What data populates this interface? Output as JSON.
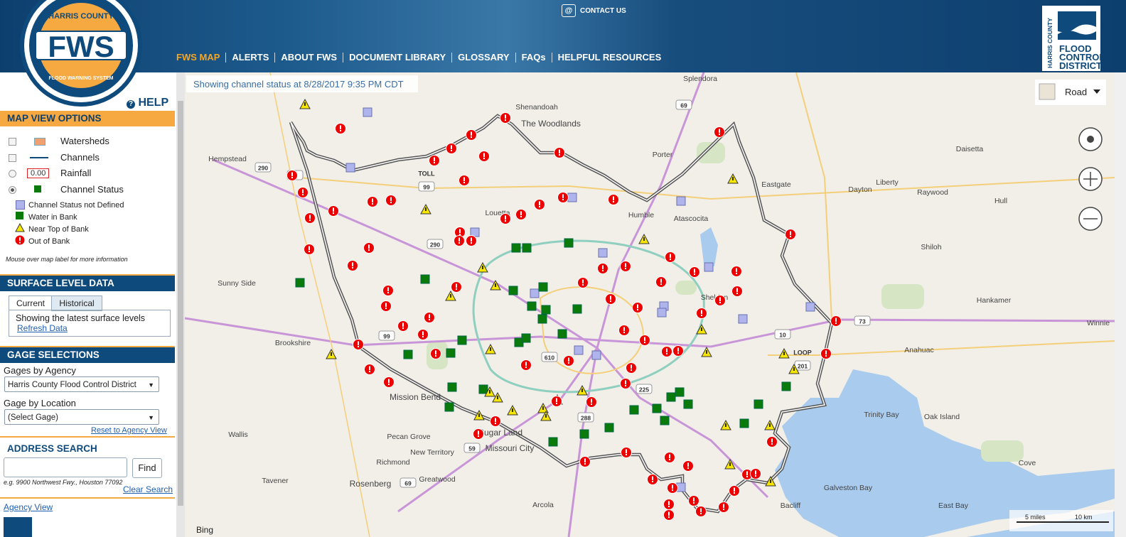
{
  "header": {
    "contact": "CONTACT US",
    "nav": [
      "FWS MAP",
      "ALERTS",
      "ABOUT FWS",
      "DOCUMENT LIBRARY",
      "GLOSSARY",
      "FAQs",
      "HELPFUL RESOURCES"
    ],
    "logo": {
      "county": "HARRIS COUNTY",
      "name": "FWS",
      "system": "FLOOD WARNING SYSTEM"
    },
    "district_logo": {
      "county": "HARRIS COUNTY",
      "line1": "FLOOD",
      "line2": "CONTROL",
      "line3": "DISTRICT"
    }
  },
  "sidebar": {
    "help": "HELP",
    "map_view": {
      "title": "MAP VIEW OPTIONS",
      "layers": [
        "Watersheds",
        "Channels",
        "Rainfall",
        "Channel Status"
      ],
      "rainfall_sample": "0.00",
      "legend": [
        "Channel Status not Defined",
        "Water in Bank",
        "Near Top of Bank",
        "Out of Bank"
      ],
      "note": "Mouse over map label for more information"
    },
    "surface": {
      "title": "SURFACE LEVEL DATA",
      "tabs": [
        "Current",
        "Historical"
      ],
      "text": "Showing the latest surface levels",
      "refresh": "Refresh Data"
    },
    "gage": {
      "title": "GAGE SELECTIONS",
      "agency_label": "Gages by Agency",
      "agency_value": "Harris County Flood Control District",
      "location_label": "Gage by Location",
      "location_value": "(Select Gage)",
      "reset": "Reset to Agency View"
    },
    "address": {
      "title": "ADDRESS SEARCH",
      "button": "Find",
      "example": "e.g. 9900 Northwest Fwy., Houston 77092",
      "clear": "Clear Search"
    },
    "agency_view": "Agency View"
  },
  "map": {
    "status": "Showing channel status at 8/28/2017 9:35 PM CDT",
    "style": "Road",
    "places": [
      "Splendora",
      "Shenandoah",
      "The Woodlands",
      "Porter",
      "Daisetta",
      "Hempstead",
      "Eastgate",
      "Dayton",
      "Liberty",
      "Raywood",
      "Humble",
      "Atascocita",
      "Hull",
      "Louetta",
      "Sunny Side",
      "Sheldon",
      "Shiloh",
      "Hankamer",
      "Brookshire",
      "Anahuac",
      "Winnie",
      "Mission Bend",
      "Wallis",
      "Sugar Land",
      "Missouri City",
      "Trinity Bay",
      "Oak Island",
      "Pecan Grove",
      "New Territory",
      "Richmond",
      "Greatwood",
      "Rosenberg",
      "Tavener",
      "Galveston Bay",
      "Arcola",
      "Bacliff",
      "East Bay",
      "Cove"
    ],
    "shields": [
      "290",
      "6",
      "TOLL",
      "99",
      "69",
      "290",
      "99",
      "610",
      "10",
      "73",
      "LOOP",
      "201",
      "225",
      "288",
      "59",
      "69"
    ],
    "attribution": "Bing",
    "scale": [
      "5 miles",
      "10 km"
    ]
  }
}
